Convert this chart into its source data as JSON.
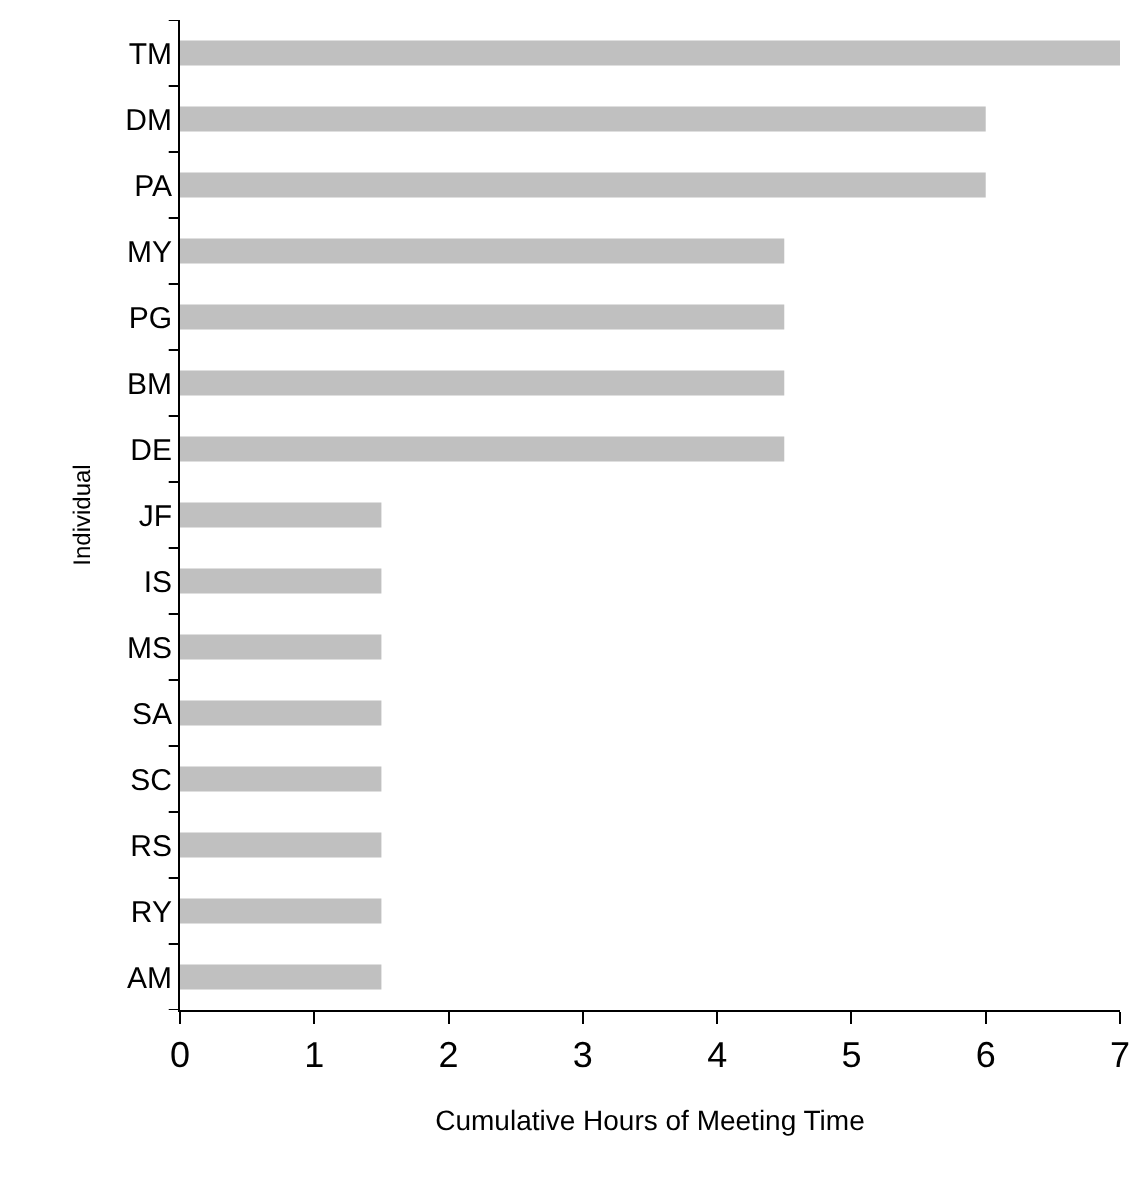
{
  "chart_data": {
    "type": "bar",
    "orientation": "horizontal",
    "xlabel": "Cumulative Hours of Meeting Time",
    "ylabel": "Individual",
    "categories": [
      "TM",
      "DM",
      "PA",
      "MY",
      "PG",
      "BM",
      "DE",
      "JF",
      "IS",
      "MS",
      "SA",
      "SC",
      "RS",
      "RY",
      "AM"
    ],
    "values": [
      7,
      6,
      6,
      4.5,
      4.5,
      4.5,
      4.5,
      1.5,
      1.5,
      1.5,
      1.5,
      1.5,
      1.5,
      1.5,
      1.5
    ],
    "color": "#c0c0c0",
    "xlim": [
      0,
      7
    ],
    "xticks": [
      0,
      1,
      2,
      3,
      4,
      5,
      6,
      7
    ]
  }
}
